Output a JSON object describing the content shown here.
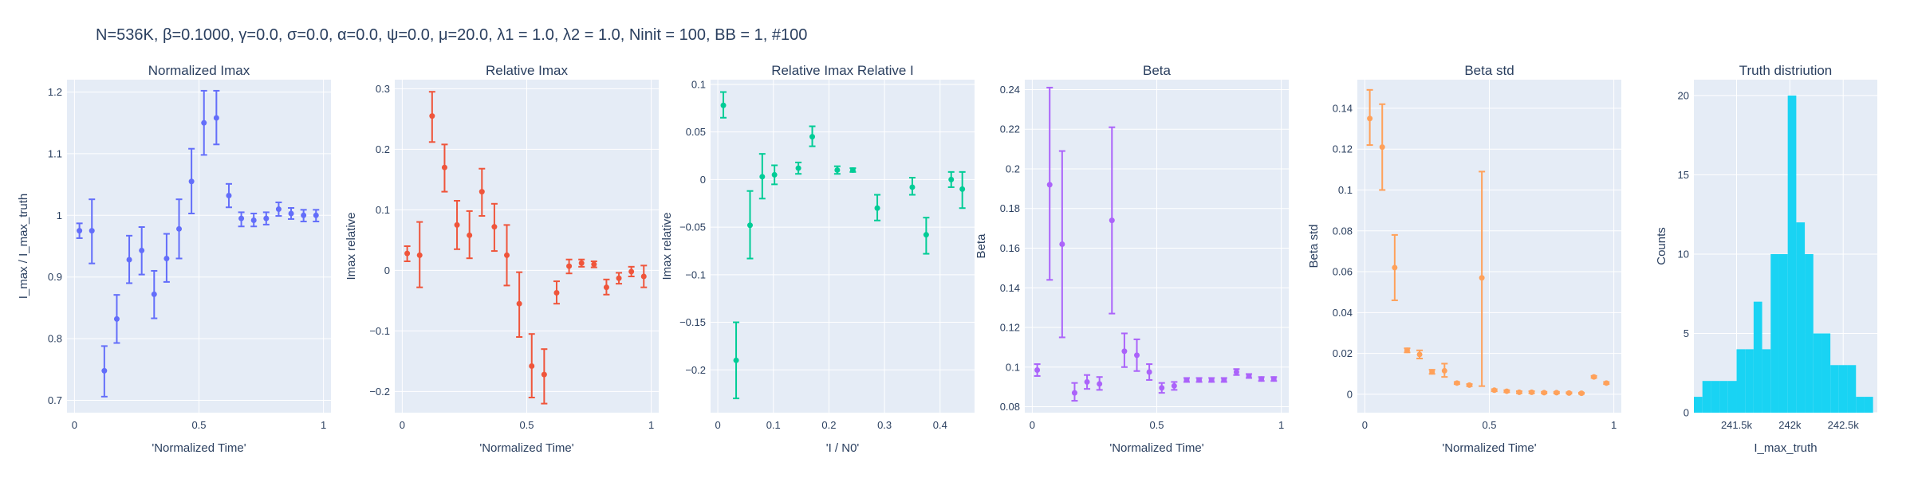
{
  "figure": {
    "title": "N=536K, β=0.1000, γ=0.0, σ=0.0,  α=0.0, ψ=0.0, μ=20.0, λ1 = 1.0, λ2 = 1.0, Ninit = 100, BB = 1, #100"
  },
  "chart_data": [
    {
      "type": "scatter",
      "title": "Normalized Imax",
      "xlabel": "'Normalized Time'",
      "ylabel": "I_max / I_max_truth",
      "color": "#636efa",
      "xlim": [
        -0.03,
        1.03
      ],
      "ylim": [
        0.68,
        1.22
      ],
      "xticks": [
        {
          "v": 0,
          "label": "0"
        },
        {
          "v": 0.5,
          "label": "0.5"
        },
        {
          "v": 1,
          "label": "1"
        }
      ],
      "yticks": [
        {
          "v": 0.7,
          "label": "0.7"
        },
        {
          "v": 0.8,
          "label": "0.8"
        },
        {
          "v": 0.9,
          "label": "0.9"
        },
        {
          "v": 1.0,
          "label": "1"
        },
        {
          "v": 1.1,
          "label": "1.1"
        },
        {
          "v": 1.2,
          "label": "1.2"
        }
      ],
      "points": [
        {
          "x": 0.02,
          "y": 0.975,
          "lo": 0.963,
          "hi": 0.987
        },
        {
          "x": 0.07,
          "y": 0.975,
          "lo": 0.922,
          "hi": 1.026
        },
        {
          "x": 0.12,
          "y": 0.748,
          "lo": 0.706,
          "hi": 0.788
        },
        {
          "x": 0.17,
          "y": 0.832,
          "lo": 0.793,
          "hi": 0.871
        },
        {
          "x": 0.22,
          "y": 0.928,
          "lo": 0.89,
          "hi": 0.967
        },
        {
          "x": 0.27,
          "y": 0.943,
          "lo": 0.904,
          "hi": 0.981
        },
        {
          "x": 0.32,
          "y": 0.872,
          "lo": 0.833,
          "hi": 0.91
        },
        {
          "x": 0.37,
          "y": 0.93,
          "lo": 0.892,
          "hi": 0.97
        },
        {
          "x": 0.42,
          "y": 0.978,
          "lo": 0.93,
          "hi": 1.026
        },
        {
          "x": 0.47,
          "y": 1.055,
          "lo": 1.003,
          "hi": 1.108
        },
        {
          "x": 0.52,
          "y": 1.15,
          "lo": 1.098,
          "hi": 1.202
        },
        {
          "x": 0.57,
          "y": 1.158,
          "lo": 1.115,
          "hi": 1.202
        },
        {
          "x": 0.62,
          "y": 1.032,
          "lo": 1.013,
          "hi": 1.051
        },
        {
          "x": 0.67,
          "y": 0.995,
          "lo": 0.982,
          "hi": 1.005
        },
        {
          "x": 0.72,
          "y": 0.992,
          "lo": 0.982,
          "hi": 1.003
        },
        {
          "x": 0.77,
          "y": 0.995,
          "lo": 0.985,
          "hi": 1.005
        },
        {
          "x": 0.82,
          "y": 1.01,
          "lo": 0.999,
          "hi": 1.021
        },
        {
          "x": 0.87,
          "y": 1.003,
          "lo": 0.994,
          "hi": 1.012
        },
        {
          "x": 0.92,
          "y": 1.0,
          "lo": 0.99,
          "hi": 1.009
        },
        {
          "x": 0.97,
          "y": 1.0,
          "lo": 0.99,
          "hi": 1.009
        }
      ]
    },
    {
      "type": "scatter",
      "title": "Relative Imax",
      "xlabel": "'Normalized Time'",
      "ylabel": "Imax relative",
      "color": "#ef553b",
      "xlim": [
        -0.03,
        1.03
      ],
      "ylim": [
        -0.235,
        0.315
      ],
      "xticks": [
        {
          "v": 0,
          "label": "0"
        },
        {
          "v": 0.5,
          "label": "0.5"
        },
        {
          "v": 1,
          "label": "1"
        }
      ],
      "yticks": [
        {
          "v": -0.2,
          "label": "−0.2"
        },
        {
          "v": -0.1,
          "label": "−0.1"
        },
        {
          "v": 0,
          "label": "0"
        },
        {
          "v": 0.1,
          "label": "0.1"
        },
        {
          "v": 0.2,
          "label": "0.2"
        },
        {
          "v": 0.3,
          "label": "0.3"
        }
      ],
      "points": [
        {
          "x": 0.02,
          "y": 0.028,
          "lo": 0.015,
          "hi": 0.04
        },
        {
          "x": 0.07,
          "y": 0.025,
          "lo": -0.028,
          "hi": 0.08
        },
        {
          "x": 0.12,
          "y": 0.255,
          "lo": 0.212,
          "hi": 0.295
        },
        {
          "x": 0.17,
          "y": 0.17,
          "lo": 0.13,
          "hi": 0.208
        },
        {
          "x": 0.22,
          "y": 0.075,
          "lo": 0.035,
          "hi": 0.115
        },
        {
          "x": 0.27,
          "y": 0.058,
          "lo": 0.02,
          "hi": 0.098
        },
        {
          "x": 0.32,
          "y": 0.13,
          "lo": 0.09,
          "hi": 0.168
        },
        {
          "x": 0.37,
          "y": 0.072,
          "lo": 0.032,
          "hi": 0.11
        },
        {
          "x": 0.42,
          "y": 0.025,
          "lo": -0.025,
          "hi": 0.075
        },
        {
          "x": 0.47,
          "y": -0.055,
          "lo": -0.11,
          "hi": -0.003
        },
        {
          "x": 0.52,
          "y": -0.158,
          "lo": -0.21,
          "hi": -0.105
        },
        {
          "x": 0.57,
          "y": -0.172,
          "lo": -0.22,
          "hi": -0.13
        },
        {
          "x": 0.62,
          "y": -0.037,
          "lo": -0.055,
          "hi": -0.018
        },
        {
          "x": 0.67,
          "y": 0.007,
          "lo": -0.005,
          "hi": 0.018
        },
        {
          "x": 0.72,
          "y": 0.012,
          "lo": 0.006,
          "hi": 0.018
        },
        {
          "x": 0.77,
          "y": 0.01,
          "lo": 0.005,
          "hi": 0.015
        },
        {
          "x": 0.82,
          "y": -0.028,
          "lo": -0.04,
          "hi": -0.015
        },
        {
          "x": 0.87,
          "y": -0.013,
          "lo": -0.022,
          "hi": -0.004
        },
        {
          "x": 0.92,
          "y": -0.002,
          "lo": -0.01,
          "hi": 0.006
        },
        {
          "x": 0.97,
          "y": -0.01,
          "lo": -0.028,
          "hi": 0.008
        }
      ]
    },
    {
      "type": "scatter",
      "title": "Relative Imax Relative I",
      "xlabel": "'I / N0'",
      "ylabel": "Imax relative",
      "color": "#00cc96",
      "xlim": [
        -0.013,
        0.462
      ],
      "ylim": [
        -0.245,
        0.105
      ],
      "xticks": [
        {
          "v": 0,
          "label": "0"
        },
        {
          "v": 0.1,
          "label": "0.1"
        },
        {
          "v": 0.2,
          "label": "0.2"
        },
        {
          "v": 0.3,
          "label": "0.3"
        },
        {
          "v": 0.4,
          "label": "0.4"
        }
      ],
      "yticks": [
        {
          "v": -0.2,
          "label": "−0.2"
        },
        {
          "v": -0.15,
          "label": "−0.15"
        },
        {
          "v": -0.1,
          "label": "−0.1"
        },
        {
          "v": -0.05,
          "label": "−0.05"
        },
        {
          "v": 0,
          "label": "0"
        },
        {
          "v": 0.05,
          "label": "0.05"
        },
        {
          "v": 0.1,
          "label": "0.1"
        }
      ],
      "points": [
        {
          "x": 0.01,
          "y": 0.078,
          "lo": 0.065,
          "hi": 0.092
        },
        {
          "x": 0.033,
          "y": -0.19,
          "lo": -0.23,
          "hi": -0.15
        },
        {
          "x": 0.058,
          "y": -0.048,
          "lo": -0.083,
          "hi": -0.012
        },
        {
          "x": 0.08,
          "y": 0.003,
          "lo": -0.02,
          "hi": 0.027
        },
        {
          "x": 0.102,
          "y": 0.005,
          "lo": -0.005,
          "hi": 0.015
        },
        {
          "x": 0.145,
          "y": 0.012,
          "lo": 0.006,
          "hi": 0.018
        },
        {
          "x": 0.17,
          "y": 0.045,
          "lo": 0.035,
          "hi": 0.056
        },
        {
          "x": 0.215,
          "y": 0.01,
          "lo": 0.006,
          "hi": 0.014
        },
        {
          "x": 0.243,
          "y": 0.01,
          "lo": 0.008,
          "hi": 0.012
        },
        {
          "x": 0.287,
          "y": -0.03,
          "lo": -0.043,
          "hi": -0.016
        },
        {
          "x": 0.35,
          "y": -0.008,
          "lo": -0.016,
          "hi": 0.002
        },
        {
          "x": 0.375,
          "y": -0.058,
          "lo": -0.078,
          "hi": -0.04
        },
        {
          "x": 0.42,
          "y": 0.0,
          "lo": -0.008,
          "hi": 0.008
        },
        {
          "x": 0.44,
          "y": -0.01,
          "lo": -0.03,
          "hi": 0.008
        }
      ]
    },
    {
      "type": "scatter",
      "title": "Beta",
      "xlabel": "'Normalized Time'",
      "ylabel": "Beta",
      "color": "#ab63fa",
      "xlim": [
        -0.03,
        1.03
      ],
      "ylim": [
        0.077,
        0.245
      ],
      "xticks": [
        {
          "v": 0,
          "label": "0"
        },
        {
          "v": 0.5,
          "label": "0.5"
        },
        {
          "v": 1,
          "label": "1"
        }
      ],
      "yticks": [
        {
          "v": 0.08,
          "label": "0.08"
        },
        {
          "v": 0.1,
          "label": "0.1"
        },
        {
          "v": 0.12,
          "label": "0.12"
        },
        {
          "v": 0.14,
          "label": "0.14"
        },
        {
          "v": 0.16,
          "label": "0.16"
        },
        {
          "v": 0.18,
          "label": "0.18"
        },
        {
          "v": 0.2,
          "label": "0.2"
        },
        {
          "v": 0.22,
          "label": "0.22"
        },
        {
          "v": 0.24,
          "label": "0.24"
        }
      ],
      "points": [
        {
          "x": 0.02,
          "y": 0.0985,
          "lo": 0.0955,
          "hi": 0.1015
        },
        {
          "x": 0.07,
          "y": 0.192,
          "lo": 0.144,
          "hi": 0.241
        },
        {
          "x": 0.12,
          "y": 0.162,
          "lo": 0.115,
          "hi": 0.209
        },
        {
          "x": 0.17,
          "y": 0.087,
          "lo": 0.083,
          "hi": 0.092
        },
        {
          "x": 0.22,
          "y": 0.0925,
          "lo": 0.089,
          "hi": 0.096
        },
        {
          "x": 0.27,
          "y": 0.0915,
          "lo": 0.0885,
          "hi": 0.095
        },
        {
          "x": 0.32,
          "y": 0.174,
          "lo": 0.127,
          "hi": 0.221
        },
        {
          "x": 0.37,
          "y": 0.108,
          "lo": 0.1,
          "hi": 0.117
        },
        {
          "x": 0.42,
          "y": 0.106,
          "lo": 0.098,
          "hi": 0.114
        },
        {
          "x": 0.47,
          "y": 0.0975,
          "lo": 0.0935,
          "hi": 0.1015
        },
        {
          "x": 0.52,
          "y": 0.0895,
          "lo": 0.087,
          "hi": 0.092
        },
        {
          "x": 0.57,
          "y": 0.0905,
          "lo": 0.0885,
          "hi": 0.0925
        },
        {
          "x": 0.62,
          "y": 0.0935,
          "lo": 0.0925,
          "hi": 0.0945
        },
        {
          "x": 0.67,
          "y": 0.0935,
          "lo": 0.0925,
          "hi": 0.0945
        },
        {
          "x": 0.72,
          "y": 0.0935,
          "lo": 0.0925,
          "hi": 0.0945
        },
        {
          "x": 0.77,
          "y": 0.0935,
          "lo": 0.0925,
          "hi": 0.0945
        },
        {
          "x": 0.82,
          "y": 0.0975,
          "lo": 0.096,
          "hi": 0.099
        },
        {
          "x": 0.87,
          "y": 0.0955,
          "lo": 0.0945,
          "hi": 0.0965
        },
        {
          "x": 0.92,
          "y": 0.094,
          "lo": 0.093,
          "hi": 0.095
        },
        {
          "x": 0.97,
          "y": 0.094,
          "lo": 0.093,
          "hi": 0.095
        }
      ]
    },
    {
      "type": "scatter",
      "title": "Beta std",
      "xlabel": "'Normalized Time'",
      "ylabel": "Beta std",
      "color": "#ffa15a",
      "xlim": [
        -0.03,
        1.03
      ],
      "ylim": [
        -0.009,
        0.154
      ],
      "xticks": [
        {
          "v": 0,
          "label": "0"
        },
        {
          "v": 0.5,
          "label": "0.5"
        },
        {
          "v": 1,
          "label": "1"
        }
      ],
      "yticks": [
        {
          "v": 0,
          "label": "0"
        },
        {
          "v": 0.02,
          "label": "0.02"
        },
        {
          "v": 0.04,
          "label": "0.04"
        },
        {
          "v": 0.06,
          "label": "0.06"
        },
        {
          "v": 0.08,
          "label": "0.08"
        },
        {
          "v": 0.1,
          "label": "0.1"
        },
        {
          "v": 0.12,
          "label": "0.12"
        },
        {
          "v": 0.14,
          "label": "0.14"
        }
      ],
      "points": [
        {
          "x": 0.02,
          "y": 0.135,
          "lo": 0.122,
          "hi": 0.149
        },
        {
          "x": 0.07,
          "y": 0.121,
          "lo": 0.1,
          "hi": 0.142
        },
        {
          "x": 0.12,
          "y": 0.062,
          "lo": 0.046,
          "hi": 0.078
        },
        {
          "x": 0.17,
          "y": 0.0215,
          "lo": 0.0205,
          "hi": 0.0225
        },
        {
          "x": 0.22,
          "y": 0.0195,
          "lo": 0.0175,
          "hi": 0.0215
        },
        {
          "x": 0.27,
          "y": 0.011,
          "lo": 0.01,
          "hi": 0.012
        },
        {
          "x": 0.32,
          "y": 0.0115,
          "lo": 0.0085,
          "hi": 0.015
        },
        {
          "x": 0.37,
          "y": 0.0055,
          "lo": 0.005,
          "hi": 0.006
        },
        {
          "x": 0.42,
          "y": 0.0045,
          "lo": 0.004,
          "hi": 0.005
        },
        {
          "x": 0.47,
          "y": 0.057,
          "lo": 0.004,
          "hi": 0.109
        },
        {
          "x": 0.52,
          "y": 0.002,
          "lo": 0.0015,
          "hi": 0.0025
        },
        {
          "x": 0.57,
          "y": 0.0015,
          "lo": 0.001,
          "hi": 0.002
        },
        {
          "x": 0.62,
          "y": 0.001,
          "lo": 0.0005,
          "hi": 0.0015
        },
        {
          "x": 0.67,
          "y": 0.001,
          "lo": 0.0005,
          "hi": 0.0015
        },
        {
          "x": 0.72,
          "y": 0.0008,
          "lo": 0.0004,
          "hi": 0.0012
        },
        {
          "x": 0.77,
          "y": 0.0008,
          "lo": 0.0004,
          "hi": 0.0012
        },
        {
          "x": 0.82,
          "y": 0.0006,
          "lo": 0.0003,
          "hi": 0.001
        },
        {
          "x": 0.87,
          "y": 0.0005,
          "lo": 0.0002,
          "hi": 0.0008
        },
        {
          "x": 0.92,
          "y": 0.0085,
          "lo": 0.008,
          "hi": 0.009
        },
        {
          "x": 0.97,
          "y": 0.0055,
          "lo": 0.005,
          "hi": 0.006
        }
      ]
    },
    {
      "type": "bar",
      "title": "Truth distriution",
      "xlabel": "I_max_truth",
      "ylabel": "Counts",
      "color": "#19d3f3",
      "xlim": [
        241100,
        242820
      ],
      "ylim": [
        0,
        21
      ],
      "xticks": [
        {
          "v": 241500,
          "label": "241.5k"
        },
        {
          "v": 242000,
          "label": "242k"
        },
        {
          "v": 242500,
          "label": "242.5k"
        }
      ],
      "yticks": [
        {
          "v": 0,
          "label": "0"
        },
        {
          "v": 5,
          "label": "5"
        },
        {
          "v": 10,
          "label": "10"
        },
        {
          "v": 15,
          "label": "15"
        },
        {
          "v": 20,
          "label": "20"
        }
      ],
      "bin_width": 80,
      "bins": [
        {
          "x0": 241100,
          "count": 1
        },
        {
          "x0": 241180,
          "count": 2
        },
        {
          "x0": 241260,
          "count": 2
        },
        {
          "x0": 241340,
          "count": 2
        },
        {
          "x0": 241420,
          "count": 2
        },
        {
          "x0": 241500,
          "count": 4
        },
        {
          "x0": 241580,
          "count": 4
        },
        {
          "x0": 241660,
          "count": 7
        },
        {
          "x0": 241740,
          "count": 4
        },
        {
          "x0": 241820,
          "count": 10
        },
        {
          "x0": 241900,
          "count": 10
        },
        {
          "x0": 241980,
          "count": 20
        },
        {
          "x0": 242060,
          "count": 12
        },
        {
          "x0": 242140,
          "count": 10
        },
        {
          "x0": 242220,
          "count": 5
        },
        {
          "x0": 242300,
          "count": 5
        },
        {
          "x0": 242380,
          "count": 3
        },
        {
          "x0": 242460,
          "count": 3
        },
        {
          "x0": 242540,
          "count": 3
        },
        {
          "x0": 242620,
          "count": 1
        },
        {
          "x0": 242700,
          "count": 1
        }
      ]
    }
  ]
}
